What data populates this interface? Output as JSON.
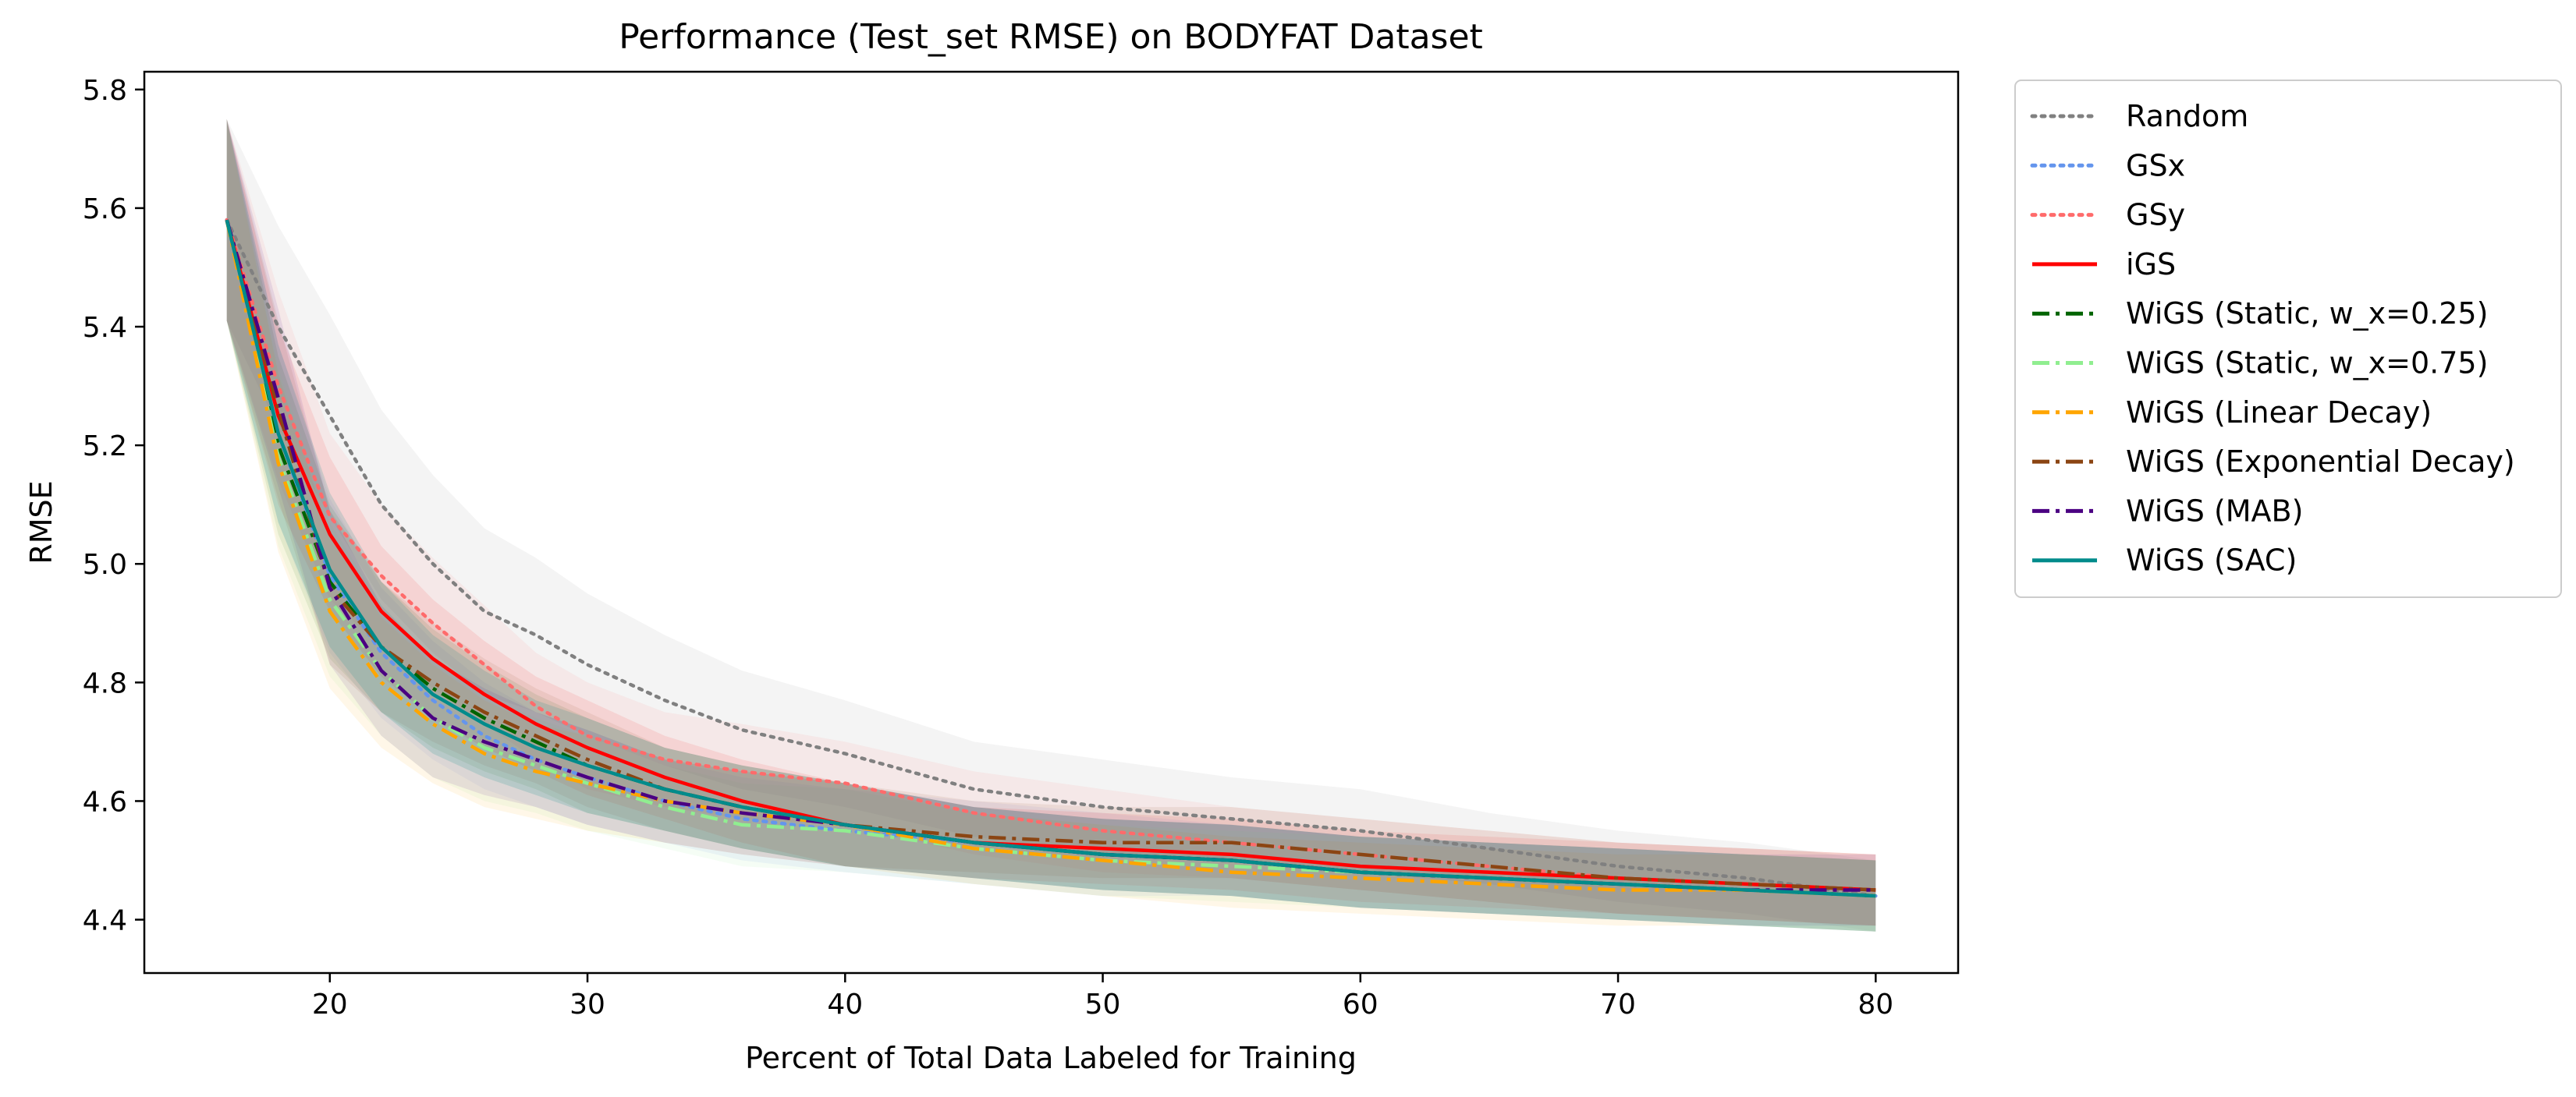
{
  "chart_data": {
    "type": "line",
    "title": "Performance (Test_set RMSE) on BODYFAT Dataset",
    "xlabel": "Percent of Total Data Labeled for Training",
    "ylabel": "RMSE",
    "xlim": [
      12.8,
      83.2
    ],
    "ylim": [
      4.31,
      5.83
    ],
    "xticks": [
      20,
      30,
      40,
      50,
      60,
      70,
      80
    ],
    "yticks": [
      4.4,
      4.6,
      4.8,
      5.0,
      5.2,
      5.4,
      5.6,
      5.8
    ],
    "xtick_labels": [
      "20",
      "30",
      "40",
      "50",
      "60",
      "70",
      "80"
    ],
    "ytick_labels": [
      "4.4",
      "4.6",
      "4.8",
      "5.0",
      "5.2",
      "5.4",
      "5.6",
      "5.8"
    ],
    "grid": false,
    "legend_position": "outside-right",
    "x": [
      16,
      18,
      20,
      22,
      24,
      26,
      28,
      30,
      33,
      36,
      40,
      45,
      50,
      55,
      60,
      65,
      70,
      75,
      80
    ],
    "series": [
      {
        "name": "Random",
        "color": "#808080",
        "dash": "dotted",
        "values": [
          5.58,
          5.4,
          5.25,
          5.1,
          5.0,
          4.92,
          4.88,
          4.83,
          4.77,
          4.72,
          4.68,
          4.62,
          4.59,
          4.57,
          4.55,
          4.52,
          4.49,
          4.47,
          4.44
        ],
        "band": [
          0.17,
          0.17,
          0.17,
          0.16,
          0.15,
          0.14,
          0.13,
          0.12,
          0.11,
          0.1,
          0.09,
          0.08,
          0.08,
          0.07,
          0.07,
          0.06,
          0.06,
          0.06,
          0.06
        ]
      },
      {
        "name": "GSx",
        "color": "#6495ED",
        "dash": "dotted",
        "values": [
          5.58,
          5.22,
          4.98,
          4.85,
          4.77,
          4.71,
          4.67,
          4.64,
          4.6,
          4.57,
          4.55,
          4.53,
          4.51,
          4.5,
          4.48,
          4.47,
          4.46,
          4.45,
          4.44
        ],
        "band": [
          0.17,
          0.15,
          0.13,
          0.11,
          0.1,
          0.09,
          0.08,
          0.08,
          0.07,
          0.07,
          0.07,
          0.07,
          0.07,
          0.06,
          0.06,
          0.06,
          0.06,
          0.06,
          0.06
        ]
      },
      {
        "name": "GSy",
        "color": "#FF6B6B",
        "dash": "dotted",
        "values": [
          5.58,
          5.3,
          5.08,
          4.98,
          4.9,
          4.83,
          4.76,
          4.71,
          4.67,
          4.65,
          4.63,
          4.58,
          4.55,
          4.53,
          4.51,
          4.49,
          4.47,
          4.46,
          4.45
        ],
        "band": [
          0.17,
          0.16,
          0.14,
          0.12,
          0.11,
          0.1,
          0.09,
          0.09,
          0.08,
          0.08,
          0.07,
          0.07,
          0.07,
          0.06,
          0.06,
          0.06,
          0.06,
          0.06,
          0.06
        ]
      },
      {
        "name": "iGS",
        "color": "#FF0000",
        "dash": "solid",
        "values": [
          5.58,
          5.25,
          5.05,
          4.92,
          4.84,
          4.78,
          4.73,
          4.69,
          4.64,
          4.6,
          4.56,
          4.53,
          4.52,
          4.51,
          4.49,
          4.48,
          4.47,
          4.46,
          4.45
        ],
        "band": [
          0.17,
          0.15,
          0.13,
          0.11,
          0.1,
          0.09,
          0.08,
          0.08,
          0.07,
          0.07,
          0.07,
          0.06,
          0.06,
          0.06,
          0.06,
          0.06,
          0.06,
          0.06,
          0.06
        ]
      },
      {
        "name": "WiGS (Static, w_x=0.25)",
        "color": "#006400",
        "dash": "dashdot",
        "values": [
          5.58,
          5.2,
          4.97,
          4.86,
          4.79,
          4.74,
          4.7,
          4.66,
          4.62,
          4.59,
          4.56,
          4.53,
          4.51,
          4.5,
          4.48,
          4.47,
          4.46,
          4.45,
          4.44
        ],
        "band": [
          0.17,
          0.15,
          0.13,
          0.11,
          0.1,
          0.09,
          0.08,
          0.08,
          0.07,
          0.07,
          0.07,
          0.06,
          0.06,
          0.06,
          0.06,
          0.06,
          0.06,
          0.06,
          0.06
        ]
      },
      {
        "name": "WiGS (Static, w_x=0.75)",
        "color": "#90EE90",
        "dash": "dashdot",
        "values": [
          5.58,
          5.18,
          4.94,
          4.82,
          4.74,
          4.69,
          4.66,
          4.63,
          4.59,
          4.56,
          4.55,
          4.52,
          4.5,
          4.49,
          4.48,
          4.47,
          4.46,
          4.45,
          4.44
        ],
        "band": [
          0.17,
          0.15,
          0.13,
          0.11,
          0.1,
          0.09,
          0.08,
          0.08,
          0.07,
          0.07,
          0.07,
          0.06,
          0.06,
          0.06,
          0.06,
          0.06,
          0.06,
          0.06,
          0.06
        ]
      },
      {
        "name": "WiGS (Linear Decay)",
        "color": "#FFA500",
        "dash": "dashdot",
        "values": [
          5.58,
          5.17,
          4.92,
          4.8,
          4.73,
          4.68,
          4.65,
          4.63,
          4.6,
          4.58,
          4.56,
          4.52,
          4.5,
          4.48,
          4.47,
          4.46,
          4.45,
          4.45,
          4.44
        ],
        "band": [
          0.17,
          0.15,
          0.13,
          0.11,
          0.1,
          0.09,
          0.08,
          0.08,
          0.07,
          0.07,
          0.07,
          0.06,
          0.06,
          0.06,
          0.06,
          0.06,
          0.06,
          0.06,
          0.06
        ]
      },
      {
        "name": "WiGS (Exponential Decay)",
        "color": "#8B4513",
        "dash": "dashdot",
        "values": [
          5.58,
          5.26,
          4.96,
          4.86,
          4.8,
          4.75,
          4.71,
          4.67,
          4.62,
          4.59,
          4.56,
          4.54,
          4.53,
          4.53,
          4.51,
          4.49,
          4.47,
          4.46,
          4.45
        ],
        "band": [
          0.17,
          0.15,
          0.13,
          0.11,
          0.1,
          0.09,
          0.08,
          0.08,
          0.07,
          0.07,
          0.07,
          0.06,
          0.06,
          0.06,
          0.06,
          0.06,
          0.06,
          0.06,
          0.06
        ]
      },
      {
        "name": "WiGS (MAB)",
        "color": "#4B0082",
        "dash": "dashdot",
        "values": [
          5.58,
          5.28,
          4.96,
          4.82,
          4.74,
          4.7,
          4.67,
          4.64,
          4.6,
          4.58,
          4.56,
          4.53,
          4.51,
          4.5,
          4.48,
          4.47,
          4.46,
          4.45,
          4.45
        ],
        "band": [
          0.17,
          0.15,
          0.13,
          0.11,
          0.1,
          0.09,
          0.08,
          0.08,
          0.07,
          0.07,
          0.07,
          0.06,
          0.06,
          0.06,
          0.06,
          0.06,
          0.06,
          0.06,
          0.06
        ]
      },
      {
        "name": "WiGS (SAC)",
        "color": "#008B8B",
        "dash": "solid",
        "values": [
          5.58,
          5.22,
          4.99,
          4.86,
          4.78,
          4.73,
          4.69,
          4.66,
          4.62,
          4.59,
          4.56,
          4.53,
          4.51,
          4.5,
          4.48,
          4.47,
          4.46,
          4.45,
          4.44
        ],
        "band": [
          0.17,
          0.15,
          0.13,
          0.11,
          0.1,
          0.09,
          0.08,
          0.08,
          0.07,
          0.07,
          0.07,
          0.06,
          0.06,
          0.06,
          0.06,
          0.06,
          0.06,
          0.06,
          0.06
        ]
      }
    ]
  }
}
